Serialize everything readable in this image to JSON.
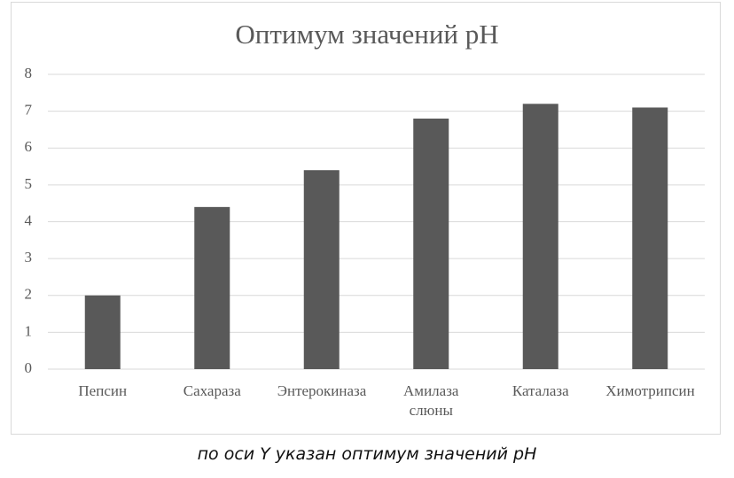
{
  "chart_data": {
    "type": "bar",
    "title": "Оптимум значений pH",
    "categories": [
      "Пепсин",
      "Сахараза",
      "Энтерокиназа",
      "Амилаза слюны",
      "Каталаза",
      "Химотрипсин"
    ],
    "values": [
      2,
      4.4,
      5.4,
      6.8,
      7.2,
      7.1
    ],
    "color": "#595959",
    "ylim": [
      0,
      8
    ],
    "yticks": [
      0,
      1,
      2,
      3,
      4,
      5,
      6,
      7,
      8
    ],
    "grid": true
  },
  "caption": "по оси Y указан оптимум значений pH"
}
